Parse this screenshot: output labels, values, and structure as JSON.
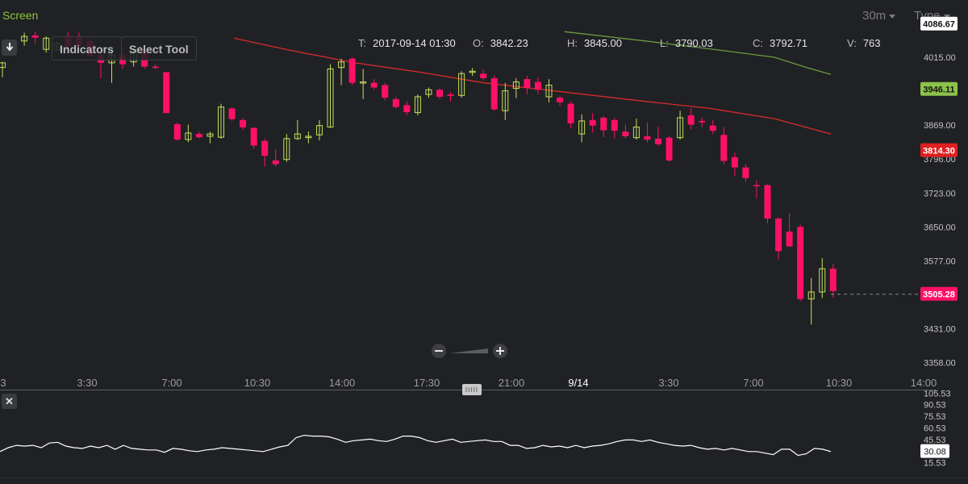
{
  "header": {
    "screen_label": "Screen",
    "timeframe": "30m",
    "type_label": "Type"
  },
  "toolbar": {
    "indicators_label": "Indicators",
    "select_tool_label": "Select Tool"
  },
  "ohlc": {
    "t_key": "T:",
    "t_val": "2017-09-14 01:30",
    "o_key": "O:",
    "o_val": "3842.23",
    "h_key": "H:",
    "h_val": "3845.00",
    "l_key": "L:",
    "l_val": "3790.03",
    "c_key": "C:",
    "c_val": "3792.71",
    "v_key": "V:",
    "v_val": "763"
  },
  "colors": {
    "background": "#202124",
    "up": "#c7df5a",
    "down": "#ff1066",
    "ma_red": "#d82a2a",
    "ma_green": "#6a9a40",
    "oscillator": "#ffffff"
  },
  "chart_data": {
    "type": "candlestick",
    "y_axis_ticks": [
      "4015.00",
      "3869.00",
      "3796.00",
      "3723.00",
      "3650.00",
      "3577.00",
      "3431.00",
      "3358.00"
    ],
    "ylim": [
      3300,
      4110
    ],
    "price_labels": [
      {
        "value": 4086.67,
        "text": "4086.67",
        "color": "#ffffff",
        "text_color": "#111111"
      },
      {
        "value": 3946.11,
        "text": "3946.11",
        "color": "#8bc34a",
        "text_color": "#111111"
      },
      {
        "value": 3814.3,
        "text": "3814.30",
        "color": "#e01f1f",
        "text_color": "#ffffff"
      },
      {
        "value": 3505.28,
        "text": "3505.28",
        "color": "#ff1066",
        "text_color": "#ffffff"
      }
    ],
    "x_tick_labels": [
      "3",
      "3:30",
      "7:00",
      "10:30",
      "14:00",
      "17:30",
      "21:00",
      "9/14",
      "3:30",
      "7:00",
      "10:30",
      "14:00"
    ],
    "x_tick_highlight": "9/14",
    "candles": [
      {
        "o": 3993,
        "h": 4005,
        "l": 3972,
        "c": 4003
      },
      {
        "o": 4030,
        "h": 4050,
        "l": 4020,
        "c": 4045
      },
      {
        "o": 4050,
        "h": 4068,
        "l": 4040,
        "c": 4060
      },
      {
        "o": 4062,
        "h": 4070,
        "l": 4045,
        "c": 4057
      },
      {
        "o": 4032,
        "h": 4060,
        "l": 4025,
        "c": 4056
      },
      {
        "o": 4030,
        "h": 4048,
        "l": 4028,
        "c": 4045
      },
      {
        "o": 4060,
        "h": 4070,
        "l": 4030,
        "c": 4038
      },
      {
        "o": 4058,
        "h": 4068,
        "l": 4035,
        "c": 4040
      },
      {
        "o": 4050,
        "h": 4060,
        "l": 4015,
        "c": 4018
      },
      {
        "o": 4020,
        "h": 4030,
        "l": 3970,
        "c": 4003
      },
      {
        "o": 4003,
        "h": 4028,
        "l": 3960,
        "c": 4020
      },
      {
        "o": 4020,
        "h": 4040,
        "l": 3990,
        "c": 4000
      },
      {
        "o": 4005,
        "h": 4035,
        "l": 3995,
        "c": 4032
      },
      {
        "o": 4030,
        "h": 4042,
        "l": 3990,
        "c": 3995
      },
      {
        "o": 3995,
        "h": 4000,
        "l": 3990,
        "c": 3992
      },
      {
        "o": 3983,
        "h": 3983,
        "l": 3895,
        "c": 3895
      },
      {
        "o": 3871,
        "h": 3875,
        "l": 3835,
        "c": 3838
      },
      {
        "o": 3838,
        "h": 3870,
        "l": 3832,
        "c": 3852
      },
      {
        "o": 3850,
        "h": 3855,
        "l": 3840,
        "c": 3843
      },
      {
        "o": 3845,
        "h": 3855,
        "l": 3830,
        "c": 3850
      },
      {
        "o": 3843,
        "h": 3915,
        "l": 3840,
        "c": 3908
      },
      {
        "o": 3905,
        "h": 3907,
        "l": 3878,
        "c": 3882
      },
      {
        "o": 3880,
        "h": 3885,
        "l": 3858,
        "c": 3864
      },
      {
        "o": 3863,
        "h": 3865,
        "l": 3818,
        "c": 3825
      },
      {
        "o": 3835,
        "h": 3840,
        "l": 3780,
        "c": 3803
      },
      {
        "o": 3793,
        "h": 3818,
        "l": 3780,
        "c": 3785
      },
      {
        "o": 3795,
        "h": 3850,
        "l": 3790,
        "c": 3840
      },
      {
        "o": 3840,
        "h": 3880,
        "l": 3837,
        "c": 3850
      },
      {
        "o": 3842,
        "h": 3855,
        "l": 3830,
        "c": 3845
      },
      {
        "o": 3848,
        "h": 3880,
        "l": 3836,
        "c": 3868
      },
      {
        "o": 3865,
        "h": 4000,
        "l": 3863,
        "c": 3990
      },
      {
        "o": 3993,
        "h": 4012,
        "l": 3955,
        "c": 4005
      },
      {
        "o": 4012,
        "h": 4015,
        "l": 3955,
        "c": 3960
      },
      {
        "o": 3960,
        "h": 3990,
        "l": 3925,
        "c": 3962
      },
      {
        "o": 3960,
        "h": 3968,
        "l": 3945,
        "c": 3950
      },
      {
        "o": 3955,
        "h": 3960,
        "l": 3922,
        "c": 3928
      },
      {
        "o": 3925,
        "h": 3930,
        "l": 3905,
        "c": 3908
      },
      {
        "o": 3912,
        "h": 3920,
        "l": 3890,
        "c": 3897
      },
      {
        "o": 3896,
        "h": 3935,
        "l": 3890,
        "c": 3930
      },
      {
        "o": 3935,
        "h": 3950,
        "l": 3928,
        "c": 3945
      },
      {
        "o": 3945,
        "h": 3948,
        "l": 3925,
        "c": 3930
      },
      {
        "o": 3935,
        "h": 3940,
        "l": 3920,
        "c": 3932
      },
      {
        "o": 3933,
        "h": 3985,
        "l": 3928,
        "c": 3980
      },
      {
        "o": 3983,
        "h": 3992,
        "l": 3975,
        "c": 3985
      },
      {
        "o": 3980,
        "h": 3988,
        "l": 3965,
        "c": 3970
      },
      {
        "o": 3970,
        "h": 3976,
        "l": 3900,
        "c": 3903
      },
      {
        "o": 3900,
        "h": 3960,
        "l": 3880,
        "c": 3943
      },
      {
        "o": 3948,
        "h": 3970,
        "l": 3927,
        "c": 3962
      },
      {
        "o": 3968,
        "h": 3975,
        "l": 3935,
        "c": 3950
      },
      {
        "o": 3962,
        "h": 3972,
        "l": 3935,
        "c": 3945
      },
      {
        "o": 3930,
        "h": 3968,
        "l": 3918,
        "c": 3955
      },
      {
        "o": 3928,
        "h": 3932,
        "l": 3910,
        "c": 3918
      },
      {
        "o": 3915,
        "h": 3920,
        "l": 3862,
        "c": 3873
      },
      {
        "o": 3850,
        "h": 3892,
        "l": 3832,
        "c": 3878
      },
      {
        "o": 3880,
        "h": 3895,
        "l": 3853,
        "c": 3868
      },
      {
        "o": 3885,
        "h": 3888,
        "l": 3843,
        "c": 3858
      },
      {
        "o": 3880,
        "h": 3885,
        "l": 3840,
        "c": 3857
      },
      {
        "o": 3855,
        "h": 3870,
        "l": 3840,
        "c": 3845
      },
      {
        "o": 3842,
        "h": 3883,
        "l": 3838,
        "c": 3865
      },
      {
        "o": 3845,
        "h": 3875,
        "l": 3832,
        "c": 3838
      },
      {
        "o": 3840,
        "h": 3865,
        "l": 3825,
        "c": 3828
      },
      {
        "o": 3842,
        "h": 3845,
        "l": 3790,
        "c": 3793
      },
      {
        "o": 3842,
        "h": 3900,
        "l": 3838,
        "c": 3885
      },
      {
        "o": 3890,
        "h": 3905,
        "l": 3860,
        "c": 3870
      },
      {
        "o": 3878,
        "h": 3885,
        "l": 3865,
        "c": 3875
      },
      {
        "o": 3868,
        "h": 3880,
        "l": 3850,
        "c": 3857
      },
      {
        "o": 3848,
        "h": 3865,
        "l": 3785,
        "c": 3792
      },
      {
        "o": 3800,
        "h": 3810,
        "l": 3760,
        "c": 3778
      },
      {
        "o": 3778,
        "h": 3785,
        "l": 3747,
        "c": 3755
      },
      {
        "o": 3740,
        "h": 3750,
        "l": 3712,
        "c": 3738
      },
      {
        "o": 3740,
        "h": 3742,
        "l": 3658,
        "c": 3668
      },
      {
        "o": 3668,
        "h": 3670,
        "l": 3580,
        "c": 3598
      },
      {
        "o": 3640,
        "h": 3680,
        "l": 3615,
        "c": 3608
      },
      {
        "o": 3650,
        "h": 3655,
        "l": 3490,
        "c": 3495
      },
      {
        "o": 3495,
        "h": 3540,
        "l": 3440,
        "c": 3510
      },
      {
        "o": 3510,
        "h": 3583,
        "l": 3497,
        "c": 3560
      },
      {
        "o": 3560,
        "h": 3570,
        "l": 3498,
        "c": 3512
      }
    ],
    "ma_red": [
      [
        290,
        4056
      ],
      [
        360,
        4030
      ],
      [
        440,
        4003
      ],
      [
        520,
        3983
      ],
      [
        600,
        3960
      ],
      [
        700,
        3940
      ],
      [
        800,
        3920
      ],
      [
        880,
        3905
      ],
      [
        960,
        3883
      ],
      [
        1030,
        3850
      ]
    ],
    "ma_green": [
      [
        700,
        4070
      ],
      [
        800,
        4050
      ],
      [
        880,
        4033
      ],
      [
        960,
        4015
      ],
      [
        1000,
        3993
      ],
      [
        1030,
        3978
      ]
    ],
    "current_price": 3505.28,
    "oscillator": {
      "ticks": [
        "105.53",
        "90.53",
        "75.53",
        "60.53",
        "45.53",
        "15.53"
      ],
      "ylim": [
        12,
        108
      ],
      "current_label": "30.08",
      "values": [
        30,
        35,
        38,
        37,
        38,
        35,
        41,
        42,
        37,
        35,
        34,
        37,
        35,
        38,
        33,
        38,
        34,
        33,
        32,
        32,
        29,
        34,
        33,
        31,
        30,
        32,
        33,
        35,
        34,
        33,
        32,
        31,
        30,
        33,
        36,
        38,
        48,
        51,
        50,
        50,
        49,
        46,
        42,
        44,
        45,
        46,
        44,
        43,
        46,
        50,
        50,
        48,
        44,
        42,
        44,
        46,
        42,
        43,
        44,
        45,
        43,
        43,
        38,
        38,
        34,
        35,
        38,
        36,
        37,
        35,
        38,
        35,
        37,
        38,
        40,
        43,
        45,
        45,
        43,
        45,
        42,
        40,
        38,
        37,
        38,
        35,
        33,
        34,
        32,
        34,
        32,
        30,
        30,
        28,
        26,
        33,
        33,
        25,
        27,
        34,
        33,
        30
      ]
    }
  }
}
